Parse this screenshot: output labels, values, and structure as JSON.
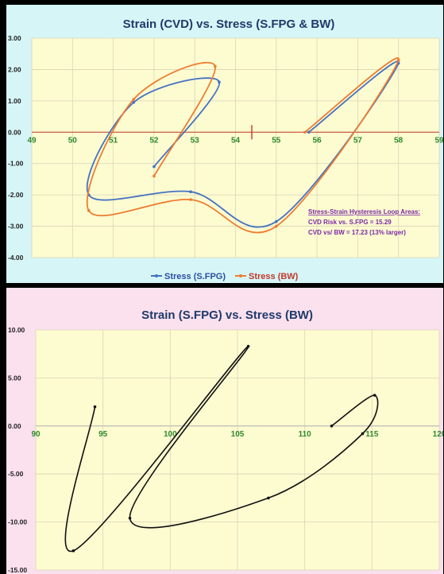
{
  "chart_data": [
    {
      "type": "scatter",
      "mode": "lines+markers",
      "title": "Strain (CVD) vs. Stress (S.FPG & BW)",
      "xlim": [
        49,
        59
      ],
      "ylim": [
        -4,
        3
      ],
      "x_ticks": [
        "49",
        "50",
        "51",
        "52",
        "53",
        "54",
        "55",
        "56",
        "57",
        "58",
        "59"
      ],
      "y_ticks": [
        "3.00",
        "2.00",
        "1.00",
        "0.00",
        "-1.00",
        "-2.00",
        "-3.00",
        "-4.00"
      ],
      "grid": true,
      "legend_position": "bottom",
      "colors": {
        "S.FPG": "#4472c4",
        "BW": "#ed7d31",
        "axis": "#c0392b",
        "tick_label": "#2e8b2e",
        "annotation": "#7a2aa5"
      },
      "series": [
        {
          "name": "Stress (S.FPG)",
          "color": "#4472c4",
          "points": [
            [
              52.0,
              -1.1
            ],
            [
              53.6,
              1.6
            ],
            [
              51.5,
              0.95
            ],
            [
              50.4,
              -2.0
            ],
            [
              52.9,
              -1.9
            ],
            [
              55.0,
              -2.85
            ],
            [
              58.0,
              2.2
            ],
            [
              55.8,
              0.0
            ]
          ]
        },
        {
          "name": "Stress (BW)",
          "color": "#ed7d31",
          "points": [
            [
              52.0,
              -1.4
            ],
            [
              53.5,
              2.1
            ],
            [
              51.5,
              1.05
            ],
            [
              50.4,
              -2.5
            ],
            [
              52.9,
              -2.15
            ],
            [
              55.0,
              -3.0
            ],
            [
              58.0,
              2.3
            ],
            [
              55.7,
              0.0
            ]
          ]
        }
      ],
      "annotation": {
        "title": "Stress-Strain Hysteresis Loop Areas:",
        "lines": [
          "CVD Risk vs. S.FPG = 15.29",
          "CVD vs/ BW = 17.23 (13% larger)"
        ]
      }
    },
    {
      "type": "scatter",
      "mode": "lines+markers",
      "title": "Strain (S.FPG) vs. Stress (BW)",
      "xlim": [
        90,
        120
      ],
      "ylim": [
        -15,
        10
      ],
      "x_ticks": [
        "90",
        "95",
        "100",
        "105",
        "110",
        "115",
        "120"
      ],
      "y_ticks": [
        "10.00",
        "5.00",
        "0.00",
        "-5.00",
        "-10.00",
        "-15.00"
      ],
      "grid": true,
      "colors": {
        "line": "#111111",
        "tick_label": "#2e8b2e"
      },
      "series": [
        {
          "color": "#111111",
          "points": [
            [
              94.4,
              2.0
            ],
            [
              92.8,
              -13.0
            ],
            [
              105.8,
              8.3
            ],
            [
              97.0,
              -9.6
            ],
            [
              107.3,
              -7.5
            ],
            [
              114.3,
              -0.8
            ],
            [
              115.2,
              3.2
            ],
            [
              112.0,
              0.0
            ]
          ]
        }
      ]
    }
  ]
}
